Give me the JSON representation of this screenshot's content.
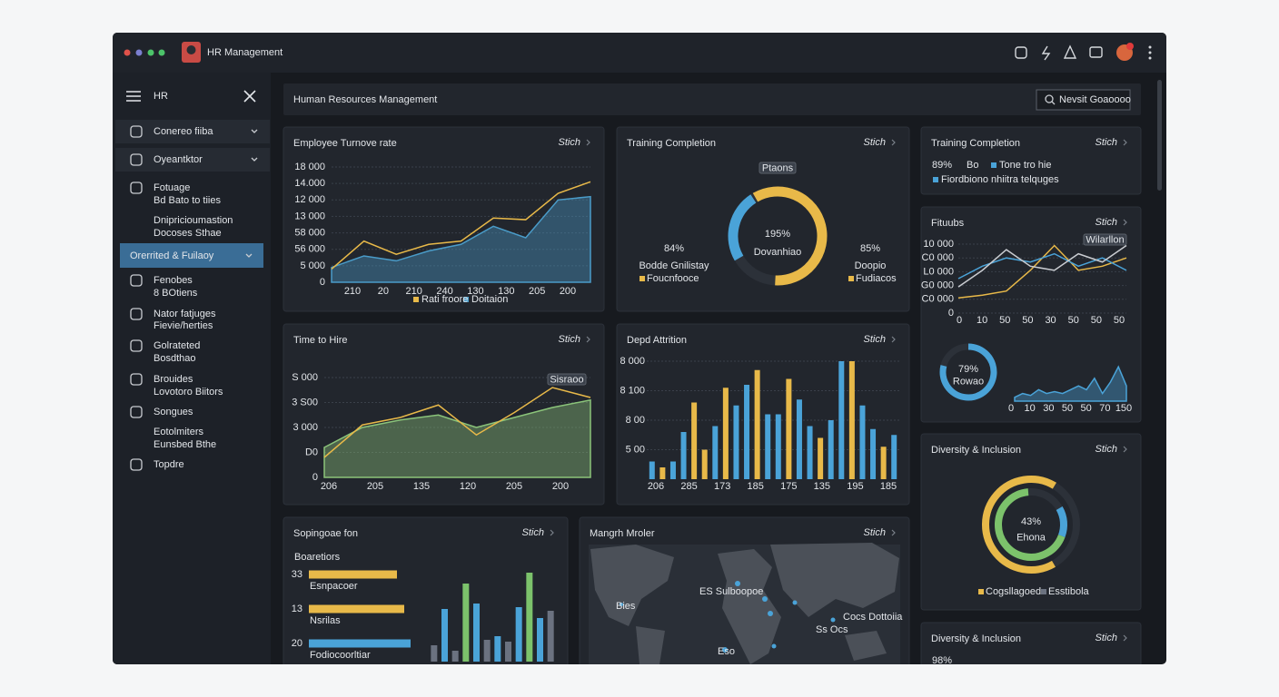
{
  "window": {
    "title": "HR Management"
  },
  "sidebar": {
    "title": "HR",
    "items": [
      {
        "label": "Conereo fiiba",
        "expand": true
      },
      {
        "label": "Oyeantktor",
        "expand": true
      },
      {
        "label": "Fotuage",
        "sub": "Bd Bato to tiies"
      },
      {
        "label": "Dnipricioumastion",
        "sub": "Docoses Sthae"
      },
      {
        "label": "Orerrited & Fuilaoy",
        "expand": true,
        "active": true
      },
      {
        "label": "Fenobes",
        "sub": "8 BOtiens"
      },
      {
        "label": "Nator fatjuges",
        "sub": "Fievie/herties"
      },
      {
        "label": "Golrateted",
        "sub": "Bosdthao"
      },
      {
        "label": "Brouides",
        "sub": "Lovotoro Biitors"
      },
      {
        "label": "Songues"
      },
      {
        "label": "Eotolmiters",
        "sub": "Eunsbed Bthe"
      },
      {
        "label": "Topdre"
      }
    ]
  },
  "header": {
    "title": "Human Resources Management",
    "search": "Nevsit Goaoooo"
  },
  "panels": [
    {
      "title": "Employee Turnove rate",
      "link": "Stich",
      "charts": [
        {
          "type": "line",
          "ylim": [
            0,
            7
          ],
          "yticks": [
            0,
            {
              "value": 1,
              "label": "5 000"
            },
            {
              "value": 2,
              "label": "56 000"
            },
            {
              "value": 3,
              "label": "58 000"
            },
            {
              "value": 4,
              "label": "13 000"
            },
            {
              "value": 5,
              "label": "12 000"
            },
            {
              "value": 6,
              "label": "14.000"
            },
            {
              "value": 7,
              "label": "18 000"
            }
          ],
          "xlabels": [
            "210",
            "20",
            "210",
            "240",
            "130",
            "130",
            "205",
            "200"
          ],
          "series": [
            {
              "name": "Doitaion",
              "color": "#4a9cc9",
              "kind": "area",
              "values": [
                0.9,
                1.6,
                1.3,
                1.9,
                2.3,
                3.4,
                2.7,
                5.0,
                5.2
              ]
            },
            {
              "name": "Rati froore",
              "color": "#e8b949",
              "kind": "line",
              "values": [
                0.8,
                2.5,
                1.7,
                2.3,
                2.5,
                3.9,
                3.8,
                5.4,
                6.1
              ]
            }
          ]
        }
      ]
    },
    {
      "title": "Training Completion",
      "link": "Stich",
      "charts": [
        {
          "type": "gauge",
          "tag": "Ptaons",
          "center": "195%",
          "caption": "Dovanhiao",
          "max": 100,
          "segments": [
            {
              "color": "#4aa3d8",
              "value": 25
            },
            {
              "color": "#e8b949",
              "value": 60
            }
          ],
          "sides": [
            {
              "value": "84%",
              "caption": "Bodde Gnilistay",
              "legend": {
                "name": "Foucnfooce",
                "color": "#e8b949"
              }
            },
            {
              "value": "85%",
              "caption": "Doopio",
              "legend": {
                "name": "Fudiacos",
                "color": "#e8b949"
              }
            }
          ]
        }
      ]
    },
    {
      "title": "Training Completion",
      "link": "Stich",
      "charts": [
        {
          "type": "stat",
          "value": "89%",
          "unit": "Bo",
          "color": "#e8b949",
          "legend": [
            {
              "name": "Tone tro hie",
              "color": "#4aa3d8"
            },
            {
              "name": "Fiordbiono nhiitra telquges",
              "color": "#4aa3d8"
            }
          ]
        }
      ]
    },
    {
      "title": "Fituubs",
      "link": "Stich",
      "charts": [
        {
          "type": "line",
          "ylim": [
            0,
            5
          ],
          "tag": "Wilarllon",
          "yticks": [
            0,
            {
              "value": 1,
              "label": "C0 000"
            },
            {
              "value": 2,
              "label": "G0 000"
            },
            {
              "value": 3,
              "label": "L0 000"
            },
            {
              "value": 4,
              "label": "C0 000"
            },
            {
              "value": 5,
              "label": "10 000"
            }
          ],
          "xlabels": [
            "0",
            "10",
            "50",
            "50",
            "30",
            "50",
            "50",
            "50"
          ],
          "series": [
            {
              "color": "#e8b949",
              "kind": "line",
              "values": [
                1.1,
                1.3,
                1.6,
                3.1,
                4.9,
                3.1,
                3.4,
                4.0
              ]
            },
            {
              "color": "#4aa3d8",
              "kind": "line",
              "values": [
                2.5,
                3.4,
                4.0,
                3.7,
                4.3,
                3.4,
                4.0,
                3.1
              ]
            },
            {
              "color": "#c9ccd1",
              "kind": "line",
              "values": [
                1.9,
                3.1,
                4.6,
                3.4,
                3.1,
                4.3,
                3.7,
                4.9
              ]
            }
          ]
        },
        {
          "type": "donut",
          "center": "79%",
          "caption": "Rowao",
          "max": 100,
          "rings": [
            {
              "segments": [
                {
                  "color": "#4aa3d8",
                  "value": 79
                }
              ]
            }
          ]
        },
        {
          "type": "line",
          "ylim": [
            0,
            10
          ],
          "xlabels": [
            "0",
            "10",
            "30",
            "50",
            "50",
            "70",
            "150"
          ],
          "series": [
            {
              "color": "#4aa3d8",
              "kind": "area",
              "values": [
                1,
                2,
                1.5,
                3,
                2,
                2.5,
                2,
                3,
                4,
                3,
                6,
                2,
                5,
                9,
                4
              ]
            }
          ]
        }
      ]
    },
    {
      "title": "Time to Hire",
      "link": "Stich",
      "charts": [
        {
          "type": "line",
          "ylim": [
            0,
            4
          ],
          "tag": "Sisraoo",
          "yticks": [
            0,
            {
              "value": 1,
              "label": "D0"
            },
            {
              "value": 2,
              "label": "3 000"
            },
            {
              "value": 3,
              "label": "3 S00"
            },
            {
              "value": 4,
              "label": "S 000"
            }
          ],
          "xlabels": [
            "206",
            "205",
            "135",
            "120",
            "205",
            "200"
          ],
          "series": [
            {
              "color": "#8bc47a",
              "kind": "area",
              "values": [
                1.2,
                2.0,
                2.3,
                2.5,
                2.0,
                2.4,
                2.8,
                3.1
              ]
            },
            {
              "color": "#e8b949",
              "kind": "line",
              "values": [
                0.8,
                2.1,
                2.4,
                2.9,
                1.7,
                2.6,
                3.6,
                3.2
              ]
            }
          ]
        }
      ]
    },
    {
      "title": "Depd Attrition",
      "link": "Stich",
      "charts": [
        {
          "type": "bar",
          "ylim": [
            0,
            4
          ],
          "yticks": [
            {
              "value": 1,
              "label": "5 00"
            },
            {
              "value": 2,
              "label": "8 00"
            },
            {
              "value": 3,
              "label": "8 100"
            },
            {
              "value": 4,
              "label": "8 000"
            }
          ],
          "xlabels": [
            "206",
            "285",
            "173",
            "185",
            "175",
            "135",
            "195",
            "185"
          ],
          "values": [
            0.6,
            0.4,
            0.6,
            1.6,
            2.6,
            1.0,
            1.8,
            3.1,
            2.5,
            3.2,
            3.7,
            2.2,
            2.2,
            3.4,
            2.7,
            1.8,
            1.4,
            2.0,
            4.0,
            4.0,
            2.5,
            1.7,
            1.1,
            1.5
          ],
          "colors": [
            "#4aa3d8",
            "#e8b949",
            "#4aa3d8",
            "#4aa3d8",
            "#e8b949",
            "#e8b949",
            "#4aa3d8",
            "#e8b949",
            "#4aa3d8",
            "#4aa3d8",
            "#e8b949",
            "#4aa3d8",
            "#4aa3d8",
            "#e8b949",
            "#4aa3d8",
            "#4aa3d8",
            "#e8b949",
            "#4aa3d8",
            "#4aa3d8",
            "#e8b949",
            "#4aa3d8",
            "#4aa3d8",
            "#e8b949",
            "#4aa3d8"
          ]
        }
      ]
    },
    {
      "title": "Sopingoae fon",
      "link": "Stich",
      "charts": [
        {
          "type": "hbar",
          "caption": "Boaretiors",
          "xlim": [
            0,
            120
          ],
          "rows": [
            {
              "label": "33",
              "name": "Esnpacoer",
              "color": "#e8b949",
              "value": 97
            },
            {
              "label": "13",
              "name": "Nsrilas",
              "color": "#e8b949",
              "value": 105
            },
            {
              "label": "20",
              "name": "Fodiocoorltiar",
              "color": "#4aa3d8",
              "value": 112
            }
          ],
          "bars": {
            "ylim": [
              0,
              100
            ],
            "values": [
              18,
              58,
              12,
              86,
              64,
              24,
              28,
              22,
              60,
              98,
              48,
              56
            ],
            "colors": [
              "#6b7280",
              "#4aa3d8",
              "#6b7280",
              "#7cc26b",
              "#4aa3d8",
              "#6b7280",
              "#4aa3d8",
              "#6b7280",
              "#4aa3d8",
              "#7cc26b",
              "#4aa3d8",
              "#6b7280"
            ]
          }
        }
      ]
    },
    {
      "title": "Mangrh Mroler",
      "link": "Stich",
      "charts": [
        {
          "type": "map",
          "labels": [
            "ES Sulboopoe",
            "Bies",
            "Cocs Dottoiia",
            "Ss Ocs",
            "Eso"
          ]
        }
      ]
    },
    {
      "title": "Diversity & Inclusion",
      "link": "Stich",
      "charts": [
        {
          "type": "donut",
          "center": "43%",
          "caption": "Ehona",
          "max": 100,
          "rings": [
            {
              "segments": [
                {
                  "color": "#e8b949",
                  "value": 67
                }
              ]
            },
            {
              "segments": [
                {
                  "color": "#4aa3d8",
                  "value": 14
                },
                {
                  "color": "#7cc26b",
                  "value": 68
                }
              ]
            }
          ],
          "legend": [
            {
              "name": "Cogsllagoed",
              "color": "#e8b949"
            },
            {
              "name": "Esstibola",
              "color": "#6b7280"
            }
          ]
        }
      ]
    },
    {
      "title": "Diversity & Inclusion",
      "link": "Stich",
      "charts": [
        {
          "type": "stat",
          "value": "98%",
          "color": "#e8b949"
        }
      ]
    }
  ]
}
